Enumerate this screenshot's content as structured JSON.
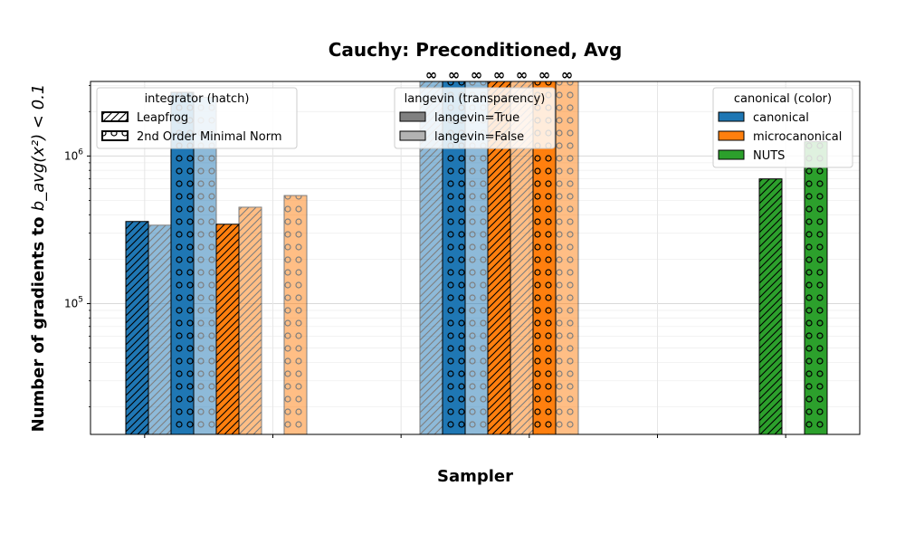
{
  "chart_data": {
    "type": "bar",
    "title": "Cauchy: Preconditioned, Avg",
    "xlabel": "Sampler",
    "ylabel_prefix": "Number of gradients to ",
    "ylabel_math": "b_avg(x²) < 0.1",
    "yscale": "log",
    "ylim": [
      13000,
      3200000
    ],
    "y_ticks": [
      {
        "value": 100000,
        "label": "10^5"
      },
      {
        "value": 1000000,
        "label": "10^6"
      }
    ],
    "grid": true,
    "infinity_symbol": "∞",
    "groups": 6,
    "colors": {
      "canonical": "#1f77b4",
      "microcanonical": "#ff7f0e",
      "NUTS": "#2ca02c"
    },
    "legends": [
      {
        "title": "integrator (hatch)",
        "placement": "top-left",
        "entries": [
          {
            "label": "Leapfrog",
            "hatch": "diag"
          },
          {
            "label": "2nd Order Minimal Norm",
            "hatch": "circle"
          }
        ]
      },
      {
        "title": "langevin (transparency)",
        "placement": "top-center",
        "entries": [
          {
            "label": "langevin=True",
            "color": "#808080",
            "alpha": 1
          },
          {
            "label": "langevin=False",
            "color": "#b3b3b3",
            "alpha": 1
          }
        ]
      },
      {
        "title": "canonical (color)",
        "placement": "top-right",
        "entries": [
          {
            "label": "canonical",
            "color": "#1f77b4"
          },
          {
            "label": "microcanonical",
            "color": "#ff7f0e"
          },
          {
            "label": "NUTS",
            "color": "#2ca02c"
          }
        ]
      }
    ],
    "bars": [
      {
        "slot": 0,
        "color": "canonical",
        "hatch": "diag",
        "langevin": true,
        "value": 360000,
        "infinite": false
      },
      {
        "slot": 1,
        "color": "canonical",
        "hatch": "diag",
        "langevin": false,
        "value": 340000,
        "infinite": false
      },
      {
        "slot": 2,
        "color": "canonical",
        "hatch": "circle",
        "langevin": true,
        "value": 2700000,
        "infinite": false
      },
      {
        "slot": 3,
        "color": "canonical",
        "hatch": "circle",
        "langevin": false,
        "value": 2500000,
        "infinite": false
      },
      {
        "slot": 4,
        "color": "microcanonical",
        "hatch": "diag",
        "langevin": true,
        "value": 345000,
        "infinite": false
      },
      {
        "slot": 5,
        "color": "microcanonical",
        "hatch": "diag",
        "langevin": false,
        "value": 450000,
        "infinite": false
      },
      {
        "slot": 7,
        "color": "microcanonical",
        "hatch": "circle",
        "langevin": false,
        "value": 540000,
        "infinite": false
      },
      {
        "slot": 13,
        "color": "canonical",
        "hatch": "diag",
        "langevin": false,
        "value": null,
        "infinite": true
      },
      {
        "slot": 14,
        "color": "canonical",
        "hatch": "circle",
        "langevin": true,
        "value": null,
        "infinite": true
      },
      {
        "slot": 15,
        "color": "canonical",
        "hatch": "circle",
        "langevin": false,
        "value": null,
        "infinite": true
      },
      {
        "slot": 16,
        "color": "microcanonical",
        "hatch": "diag",
        "langevin": true,
        "value": null,
        "infinite": true
      },
      {
        "slot": 17,
        "color": "microcanonical",
        "hatch": "diag",
        "langevin": false,
        "value": null,
        "infinite": true
      },
      {
        "slot": 18,
        "color": "microcanonical",
        "hatch": "circle",
        "langevin": true,
        "value": null,
        "infinite": true
      },
      {
        "slot": 19,
        "color": "microcanonical",
        "hatch": "circle",
        "langevin": false,
        "value": null,
        "infinite": true
      },
      {
        "slot": 28,
        "color": "NUTS",
        "hatch": "diag",
        "langevin": true,
        "value": 700000,
        "infinite": false
      },
      {
        "slot": 30,
        "color": "NUTS",
        "hatch": "circle",
        "langevin": true,
        "value": 1250000,
        "infinite": false
      }
    ]
  }
}
